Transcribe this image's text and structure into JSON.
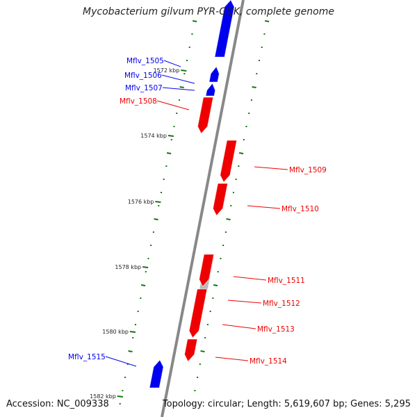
{
  "title": "Mycobacterium gilvum PYR-GCK, complete genome",
  "footer": {
    "accession": "Accession: NC_009338",
    "topology": "Topology: circular; Length: 5,619,607 bp; Genes: 5,295"
  },
  "colors": {
    "forward_strand": "#0000ee",
    "reverse_strand": "#ee0000",
    "pseudo_gene": "#bbbbbb",
    "backbone": "#888888",
    "tick": "#117711"
  },
  "ruler": [
    "1572 kbp",
    "1574 kbp",
    "1576 kbp",
    "1578 kbp",
    "1580 kbp",
    "1582 kbp"
  ],
  "genes": [
    {
      "id": "Mflv_1505",
      "strand": "forward"
    },
    {
      "id": "Mflv_1506",
      "strand": "forward"
    },
    {
      "id": "Mflv_1507",
      "strand": "forward"
    },
    {
      "id": "Mflv_1508",
      "strand": "reverse"
    },
    {
      "id": "Mflv_1509",
      "strand": "reverse"
    },
    {
      "id": "Mflv_1510",
      "strand": "reverse"
    },
    {
      "id": "Mflv_1511",
      "strand": "pseudo"
    },
    {
      "id": "Mflv_1512",
      "strand": "reverse"
    },
    {
      "id": "Mflv_1513",
      "strand": "reverse"
    },
    {
      "id": "Mflv_1514",
      "strand": "reverse"
    },
    {
      "id": "Mflv_1515",
      "strand": "forward"
    }
  ]
}
